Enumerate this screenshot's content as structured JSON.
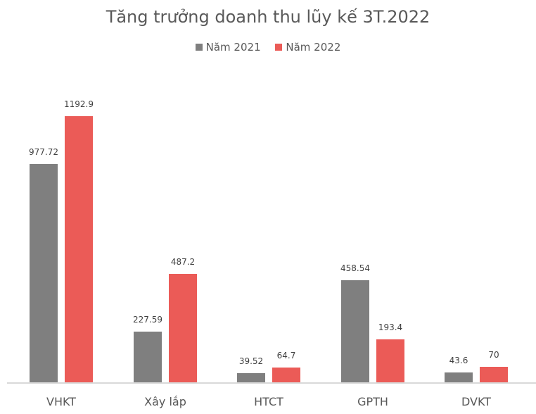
{
  "chart_data": {
    "type": "bar",
    "title": "Tăng trưởng doanh thu lũy kế 3T.2022",
    "categories": [
      "VHKT",
      "Xây lắp",
      "HTCT",
      "GPTH",
      "DVKT"
    ],
    "series": [
      {
        "name": "Năm 2021",
        "color": "#7f7f7f",
        "values": [
          977.72,
          227.59,
          39.52,
          458.54,
          43.6
        ],
        "labels": [
          "977.72",
          "227.59",
          "39.52",
          "458.54",
          "43.6"
        ]
      },
      {
        "name": "Năm 2022",
        "color": "#eb5b57",
        "values": [
          1192.9,
          487.2,
          64.7,
          193.4,
          70
        ],
        "labels": [
          "1192.9",
          "487.2",
          "64.7",
          "193.4",
          "70"
        ]
      }
    ],
    "xlabel": "",
    "ylabel": "",
    "ylim": [
      0,
      1300
    ],
    "grid": false,
    "legend_position": "top"
  }
}
